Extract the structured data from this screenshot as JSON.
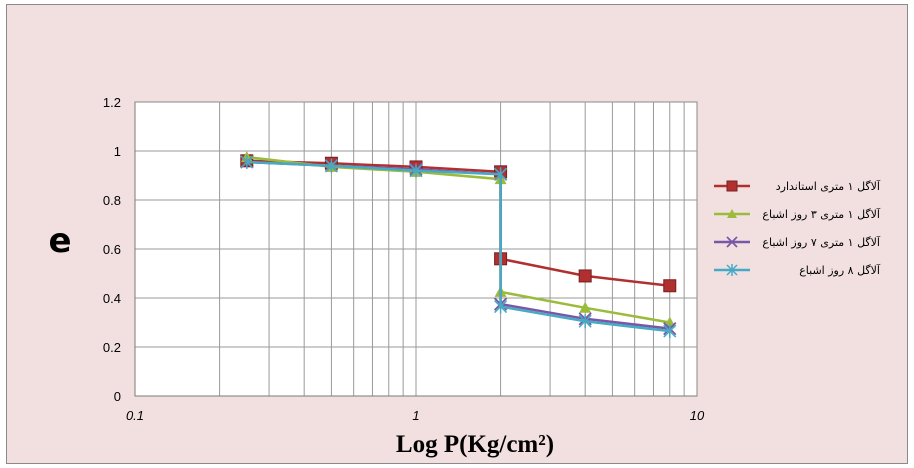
{
  "chart_data": {
    "type": "line",
    "xscale": "log",
    "xlim": [
      0.1,
      10
    ],
    "ylim": [
      0,
      1.2
    ],
    "xlabel": "Log P(Kg/cm²)",
    "ylabel": "e",
    "x_ticks": [
      "0.1",
      "1",
      "10"
    ],
    "y_ticks": [
      "0",
      "0.2",
      "0.4",
      "0.6",
      "0.8",
      "1",
      "1.2"
    ],
    "grid": true,
    "legend_position": "right",
    "series": [
      {
        "name": "آلاگل ۱ متری استاندارد",
        "color": "#b03030",
        "marker": "square",
        "x": [
          0.25,
          0.5,
          1,
          2,
          2,
          4,
          8
        ],
        "y": [
          0.96,
          0.95,
          0.935,
          0.915,
          0.56,
          0.49,
          0.45
        ]
      },
      {
        "name": "آلاگل ۱ متری ۳ روز اشباع",
        "color": "#9bbb3a",
        "marker": "triangle",
        "x": [
          0.25,
          0.5,
          1,
          2,
          2,
          4,
          8
        ],
        "y": [
          0.975,
          0.935,
          0.915,
          0.885,
          0.425,
          0.36,
          0.3
        ]
      },
      {
        "name": "آلاگل ۱ متری ۷ روز اشباع",
        "color": "#7a56a6",
        "marker": "x",
        "x": [
          0.25,
          0.5,
          1,
          2,
          2,
          4,
          8
        ],
        "y": [
          0.955,
          0.94,
          0.925,
          0.905,
          0.375,
          0.315,
          0.275
        ]
      },
      {
        "name": "آلاگل ۸ روز اشباع",
        "color": "#46aac5",
        "marker": "star",
        "x": [
          0.25,
          0.5,
          1,
          2,
          2,
          4,
          8
        ],
        "y": [
          0.955,
          0.94,
          0.92,
          0.905,
          0.365,
          0.305,
          0.265
        ]
      }
    ]
  }
}
